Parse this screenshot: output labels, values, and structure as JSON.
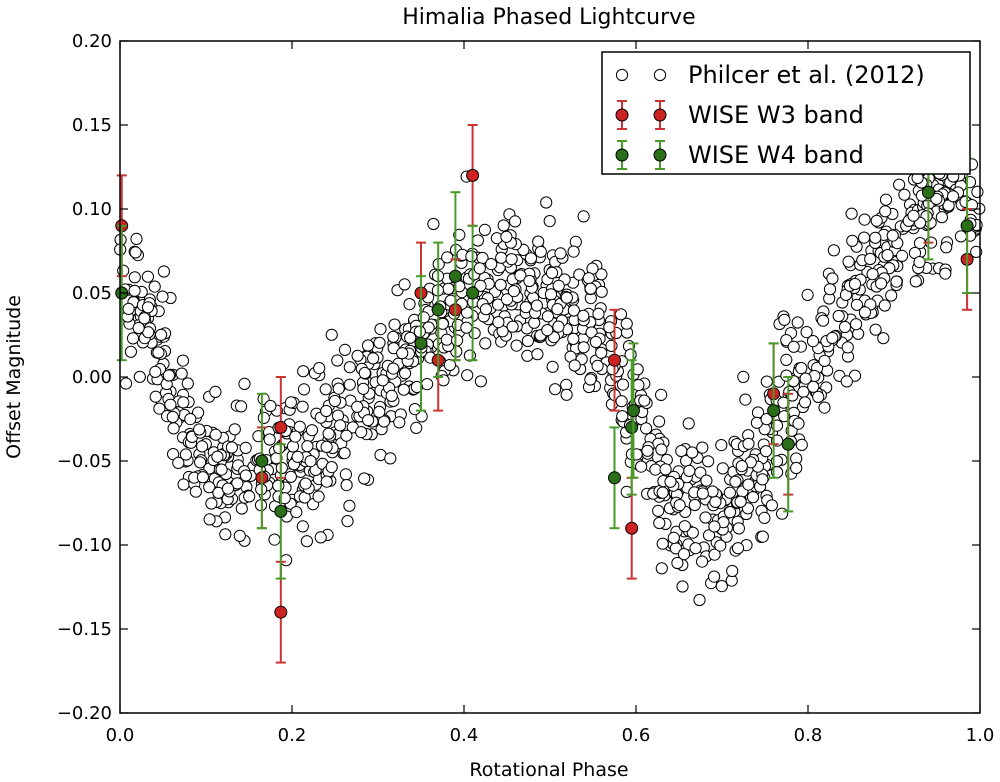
{
  "chart_data": {
    "type": "scatter",
    "title": "Himalia Phased Lightcurve",
    "xlabel": "Rotational Phase",
    "ylabel": "Offset Magnitude",
    "xlim": [
      0.0,
      1.0
    ],
    "ylim": [
      -0.2,
      0.2
    ],
    "xticks": [
      "0.0",
      "0.2",
      "0.4",
      "0.6",
      "0.8",
      "1.0"
    ],
    "yticks": [
      "−0.20",
      "−0.15",
      "−0.10",
      "−0.05",
      "0.00",
      "0.05",
      "0.10",
      "0.15",
      "0.20"
    ],
    "xtick_values": [
      0.0,
      0.2,
      0.4,
      0.6,
      0.8,
      1.0
    ],
    "ytick_values": [
      -0.2,
      -0.15,
      -0.1,
      -0.05,
      0.0,
      0.05,
      0.1,
      0.15,
      0.2
    ],
    "legend_position": "top-right",
    "series": [
      {
        "name": "Philcer et al. (2012)",
        "marker": "open-circle",
        "color": "#ffffff",
        "edge_color": "#000000",
        "trend": [
          [
            0.0,
            0.06
          ],
          [
            0.04,
            0.02
          ],
          [
            0.08,
            -0.04
          ],
          [
            0.14,
            -0.055
          ],
          [
            0.2,
            -0.05
          ],
          [
            0.26,
            -0.03
          ],
          [
            0.32,
            0.0
          ],
          [
            0.38,
            0.04
          ],
          [
            0.44,
            0.055
          ],
          [
            0.5,
            0.05
          ],
          [
            0.56,
            0.025
          ],
          [
            0.6,
            -0.03
          ],
          [
            0.64,
            -0.07
          ],
          [
            0.68,
            -0.09
          ],
          [
            0.72,
            -0.07
          ],
          [
            0.76,
            -0.03
          ],
          [
            0.8,
            0.0
          ],
          [
            0.84,
            0.03
          ],
          [
            0.88,
            0.065
          ],
          [
            0.92,
            0.095
          ],
          [
            0.96,
            0.11
          ],
          [
            1.0,
            0.1
          ]
        ],
        "count": 1300,
        "scatter_sd": 0.022
      },
      {
        "name": "WISE W3 band",
        "marker": "filled-circle",
        "color": "#cc2222",
        "errorbar_color": "#cc3333",
        "points": [
          {
            "x": 0.002,
            "y": 0.09,
            "err": 0.03
          },
          {
            "x": 0.165,
            "y": -0.06,
            "err": 0.03
          },
          {
            "x": 0.187,
            "y": -0.03,
            "err": 0.03
          },
          {
            "x": 0.187,
            "y": -0.14,
            "err": 0.03
          },
          {
            "x": 0.35,
            "y": 0.05,
            "err": 0.03
          },
          {
            "x": 0.37,
            "y": 0.01,
            "err": 0.03
          },
          {
            "x": 0.39,
            "y": 0.04,
            "err": 0.03
          },
          {
            "x": 0.41,
            "y": 0.12,
            "err": 0.03
          },
          {
            "x": 0.575,
            "y": 0.01,
            "err": 0.03
          },
          {
            "x": 0.595,
            "y": -0.09,
            "err": 0.03
          },
          {
            "x": 0.76,
            "y": -0.01,
            "err": 0.03
          },
          {
            "x": 0.777,
            "y": -0.04,
            "err": 0.03
          },
          {
            "x": 0.94,
            "y": 0.11,
            "err": 0.03
          },
          {
            "x": 0.985,
            "y": 0.07,
            "err": 0.03
          }
        ]
      },
      {
        "name": "WISE W4 band",
        "marker": "filled-circle",
        "color": "#2a6e18",
        "errorbar_color": "#4a9a2a",
        "points": [
          {
            "x": 0.002,
            "y": 0.05,
            "err": 0.04
          },
          {
            "x": 0.165,
            "y": -0.05,
            "err": 0.04
          },
          {
            "x": 0.187,
            "y": -0.08,
            "err": 0.04
          },
          {
            "x": 0.35,
            "y": 0.02,
            "err": 0.04
          },
          {
            "x": 0.37,
            "y": 0.04,
            "err": 0.04
          },
          {
            "x": 0.39,
            "y": 0.06,
            "err": 0.05
          },
          {
            "x": 0.41,
            "y": 0.05,
            "err": 0.04
          },
          {
            "x": 0.575,
            "y": -0.06,
            "err": 0.03
          },
          {
            "x": 0.595,
            "y": -0.03,
            "err": 0.04
          },
          {
            "x": 0.597,
            "y": -0.02,
            "err": 0.04
          },
          {
            "x": 0.76,
            "y": -0.02,
            "err": 0.04
          },
          {
            "x": 0.777,
            "y": -0.04,
            "err": 0.04
          },
          {
            "x": 0.94,
            "y": 0.11,
            "err": 0.04
          },
          {
            "x": 0.985,
            "y": 0.09,
            "err": 0.04
          }
        ]
      }
    ]
  }
}
